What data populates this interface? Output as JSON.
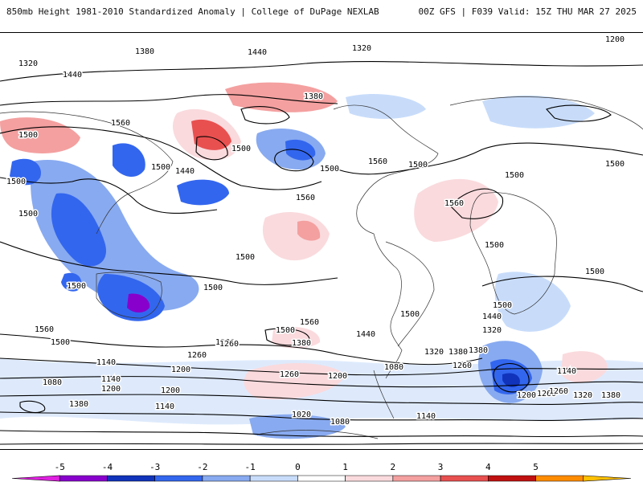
{
  "header": {
    "left_title": "850mb Height 1981-2010 Standardized Anomaly | College of DuPage NEXLAB",
    "right_title": "00Z GFS | F039 Valid: 15Z THU MAR 27 2025"
  },
  "map": {
    "contour_labels": [
      "1380",
      "1320",
      "1200",
      "1440",
      "1320",
      "1380",
      "1500",
      "1560",
      "1440",
      "1380",
      "1500",
      "1500",
      "1440",
      "1500",
      "1560",
      "1500",
      "1560",
      "1500",
      "1380",
      "1260",
      "1320",
      "1440",
      "1380",
      "1560",
      "1500",
      "1500",
      "1500",
      "1500",
      "1500",
      "1500",
      "1500",
      "1560",
      "1500",
      "1440",
      "1380",
      "1260",
      "1200",
      "1140",
      "1080",
      "1020",
      "1200",
      "1140",
      "1260",
      "1200",
      "1140",
      "1080",
      "1260",
      "1200",
      "1140",
      "1200",
      "1260",
      "1320",
      "1380",
      "1380",
      "1080",
      "1140",
      "1260",
      "1320",
      "1380",
      "1260",
      "1560",
      "1500",
      "1500",
      "1500",
      "1500"
    ]
  },
  "colorbar": {
    "ticks": [
      "-5",
      "-4",
      "-3",
      "-2",
      "-1",
      "0",
      "1",
      "2",
      "3",
      "4",
      "5"
    ],
    "colors": [
      "#e020e0",
      "#8800cc",
      "#1133bb",
      "#3366ee",
      "#88aaf0",
      "#c8dcfa",
      "#ffffff",
      "#fadadd",
      "#f4a0a0",
      "#e85050",
      "#c01010",
      "#ff8c00",
      "#ffc000"
    ]
  }
}
